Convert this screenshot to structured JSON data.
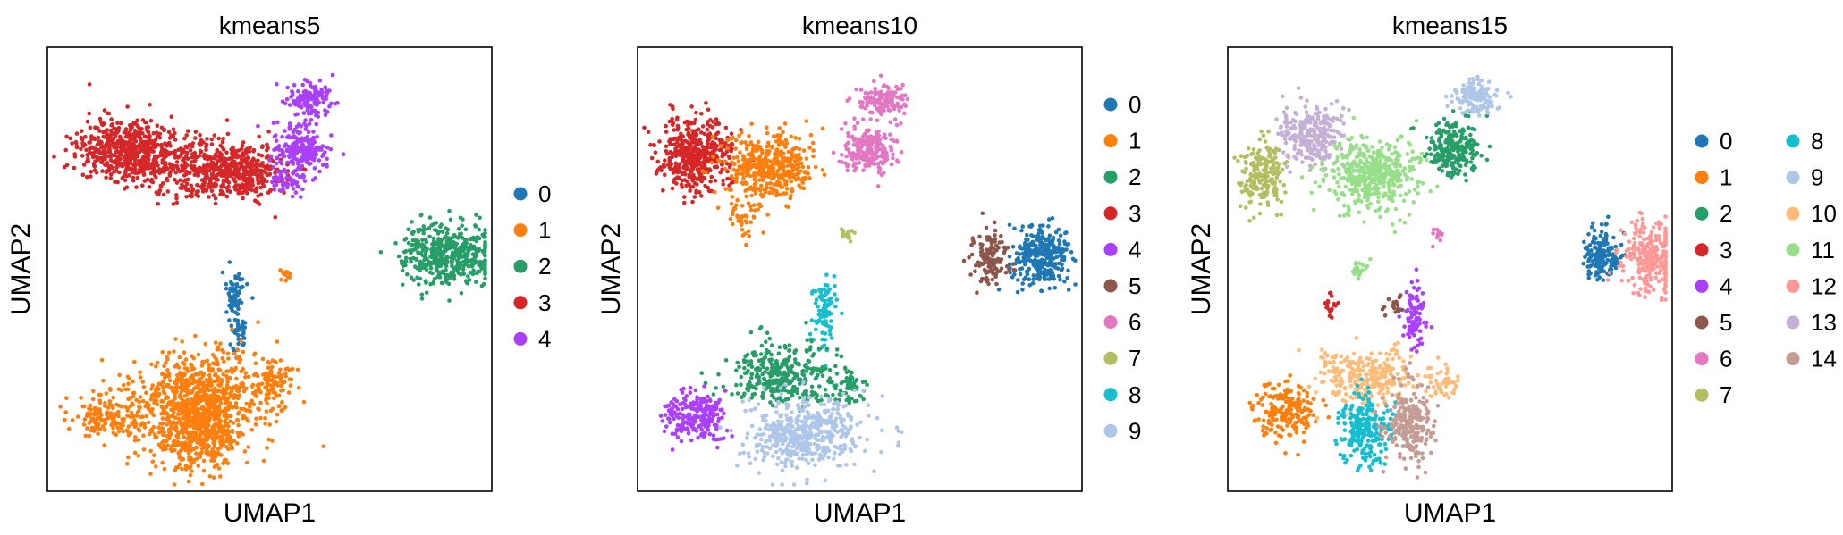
{
  "chart_data": [
    {
      "type": "scatter",
      "title": "kmeans5",
      "xlabel": "UMAP1",
      "ylabel": "UMAP2",
      "grid": false,
      "legend_position": "right",
      "categories": [
        "0",
        "1",
        "2",
        "3",
        "4"
      ],
      "colors": [
        "#1f77b4",
        "#ff7f0e",
        "#279e68",
        "#d62728",
        "#aa40fc"
      ],
      "clusters": [
        {
          "name": "3",
          "c": 3,
          "blobs": [
            [
              0.18,
              0.23,
              0.11,
              0.07,
              560
            ],
            [
              0.43,
              0.28,
              0.1,
              0.06,
              390
            ],
            [
              0.32,
              0.27,
              0.12,
              0.08,
              220
            ]
          ]
        },
        {
          "name": "4",
          "c": 4,
          "blobs": [
            [
              0.57,
              0.23,
              0.06,
              0.05,
              220
            ],
            [
              0.59,
              0.12,
              0.05,
              0.04,
              140
            ],
            [
              0.54,
              0.3,
              0.04,
              0.03,
              60
            ]
          ]
        },
        {
          "name": "2",
          "c": 2,
          "blobs": [
            [
              0.9,
              0.47,
              0.1,
              0.07,
              460
            ]
          ]
        },
        {
          "name": "0",
          "c": 0,
          "blobs": [
            [
              0.42,
              0.55,
              0.03,
              0.05,
              60
            ],
            [
              0.43,
              0.64,
              0.02,
              0.05,
              40
            ]
          ]
        },
        {
          "name": "1",
          "c": 1,
          "blobs": [
            [
              0.35,
              0.79,
              0.15,
              0.1,
              750
            ],
            [
              0.33,
              0.88,
              0.1,
              0.07,
              350
            ],
            [
              0.14,
              0.83,
              0.08,
              0.05,
              160
            ],
            [
              0.5,
              0.76,
              0.05,
              0.06,
              90
            ],
            [
              0.54,
              0.51,
              0.015,
              0.02,
              12
            ]
          ]
        }
      ]
    },
    {
      "type": "scatter",
      "title": "kmeans10",
      "xlabel": "UMAP1",
      "ylabel": "UMAP2",
      "grid": false,
      "legend_position": "right",
      "categories": [
        "0",
        "1",
        "2",
        "3",
        "4",
        "5",
        "6",
        "7",
        "8",
        "9"
      ],
      "colors": [
        "#1f77b4",
        "#ff7f0e",
        "#279e68",
        "#d62728",
        "#aa40fc",
        "#8c564b",
        "#e377c2",
        "#b5bd61",
        "#17becf",
        "#aec7e8"
      ],
      "clusters": [
        {
          "name": "3",
          "c": 3,
          "blobs": [
            [
              0.13,
              0.24,
              0.08,
              0.08,
              480
            ]
          ]
        },
        {
          "name": "1",
          "c": 1,
          "blobs": [
            [
              0.3,
              0.27,
              0.1,
              0.07,
              420
            ],
            [
              0.24,
              0.38,
              0.04,
              0.05,
              50
            ]
          ]
        },
        {
          "name": "6",
          "c": 6,
          "blobs": [
            [
              0.52,
              0.23,
              0.06,
              0.05,
              220
            ],
            [
              0.55,
              0.12,
              0.05,
              0.04,
              130
            ]
          ]
        },
        {
          "name": "0",
          "c": 0,
          "blobs": [
            [
              0.91,
              0.47,
              0.06,
              0.07,
              330
            ]
          ]
        },
        {
          "name": "5",
          "c": 5,
          "blobs": [
            [
              0.79,
              0.48,
              0.04,
              0.06,
              120
            ]
          ]
        },
        {
          "name": "7",
          "c": 7,
          "blobs": [
            [
              0.47,
              0.42,
              0.015,
              0.015,
              14
            ]
          ]
        },
        {
          "name": "8",
          "c": 8,
          "blobs": [
            [
              0.42,
              0.6,
              0.03,
              0.08,
              90
            ]
          ]
        },
        {
          "name": "2",
          "c": 2,
          "blobs": [
            [
              0.32,
              0.74,
              0.12,
              0.07,
              330
            ],
            [
              0.48,
              0.76,
              0.04,
              0.04,
              60
            ]
          ]
        },
        {
          "name": "4",
          "c": 4,
          "blobs": [
            [
              0.13,
              0.83,
              0.07,
              0.06,
              220
            ]
          ]
        },
        {
          "name": "9",
          "c": 9,
          "blobs": [
            [
              0.38,
              0.87,
              0.13,
              0.08,
              480
            ]
          ]
        }
      ]
    },
    {
      "type": "scatter",
      "title": "kmeans15",
      "xlabel": "UMAP1",
      "ylabel": "UMAP2",
      "grid": false,
      "legend_position": "right",
      "categories": [
        "0",
        "1",
        "2",
        "3",
        "4",
        "5",
        "6",
        "7",
        "8",
        "9",
        "10",
        "11",
        "12",
        "13",
        "14"
      ],
      "colors": [
        "#1f77b4",
        "#ff7f0e",
        "#279e68",
        "#d62728",
        "#aa40fc",
        "#8c564b",
        "#e377c2",
        "#b5bd61",
        "#17becf",
        "#aec7e8",
        "#ffbb78",
        "#98df8a",
        "#ff9896",
        "#c5b0d5",
        "#c49c94"
      ],
      "clusters": [
        {
          "name": "7",
          "c": 7,
          "blobs": [
            [
              0.08,
              0.28,
              0.05,
              0.07,
              200
            ]
          ]
        },
        {
          "name": "13",
          "c": 13,
          "blobs": [
            [
              0.19,
              0.2,
              0.07,
              0.07,
              260
            ]
          ]
        },
        {
          "name": "11",
          "c": 11,
          "blobs": [
            [
              0.33,
              0.29,
              0.1,
              0.08,
              460
            ],
            [
              0.3,
              0.5,
              0.02,
              0.02,
              20
            ]
          ]
        },
        {
          "name": "2",
          "c": 2,
          "blobs": [
            [
              0.51,
              0.23,
              0.06,
              0.06,
              240
            ]
          ]
        },
        {
          "name": "9",
          "c": 9,
          "blobs": [
            [
              0.56,
              0.11,
              0.05,
              0.04,
              140
            ]
          ]
        },
        {
          "name": "0",
          "c": 0,
          "blobs": [
            [
              0.84,
              0.47,
              0.04,
              0.06,
              170
            ]
          ]
        },
        {
          "name": "12",
          "c": 12,
          "blobs": [
            [
              0.95,
              0.47,
              0.07,
              0.08,
              260
            ]
          ]
        },
        {
          "name": "6",
          "c": 6,
          "blobs": [
            [
              0.47,
              0.42,
              0.015,
              0.015,
              12
            ]
          ]
        },
        {
          "name": "4",
          "c": 4,
          "blobs": [
            [
              0.42,
              0.6,
              0.025,
              0.08,
              90
            ]
          ]
        },
        {
          "name": "5",
          "c": 5,
          "blobs": [
            [
              0.38,
              0.58,
              0.02,
              0.02,
              20
            ]
          ]
        },
        {
          "name": "10",
          "c": 10,
          "blobs": [
            [
              0.32,
              0.74,
              0.11,
              0.06,
              280
            ],
            [
              0.48,
              0.76,
              0.04,
              0.04,
              50
            ]
          ]
        },
        {
          "name": "1",
          "c": 1,
          "blobs": [
            [
              0.13,
              0.82,
              0.07,
              0.06,
              200
            ]
          ]
        },
        {
          "name": "8",
          "c": 8,
          "blobs": [
            [
              0.31,
              0.86,
              0.06,
              0.08,
              240
            ]
          ]
        },
        {
          "name": "14",
          "c": 14,
          "blobs": [
            [
              0.41,
              0.85,
              0.05,
              0.09,
              230
            ]
          ]
        },
        {
          "name": "3",
          "c": 3,
          "blobs": [
            [
              0.23,
              0.58,
              0.015,
              0.03,
              20
            ]
          ]
        }
      ]
    }
  ]
}
